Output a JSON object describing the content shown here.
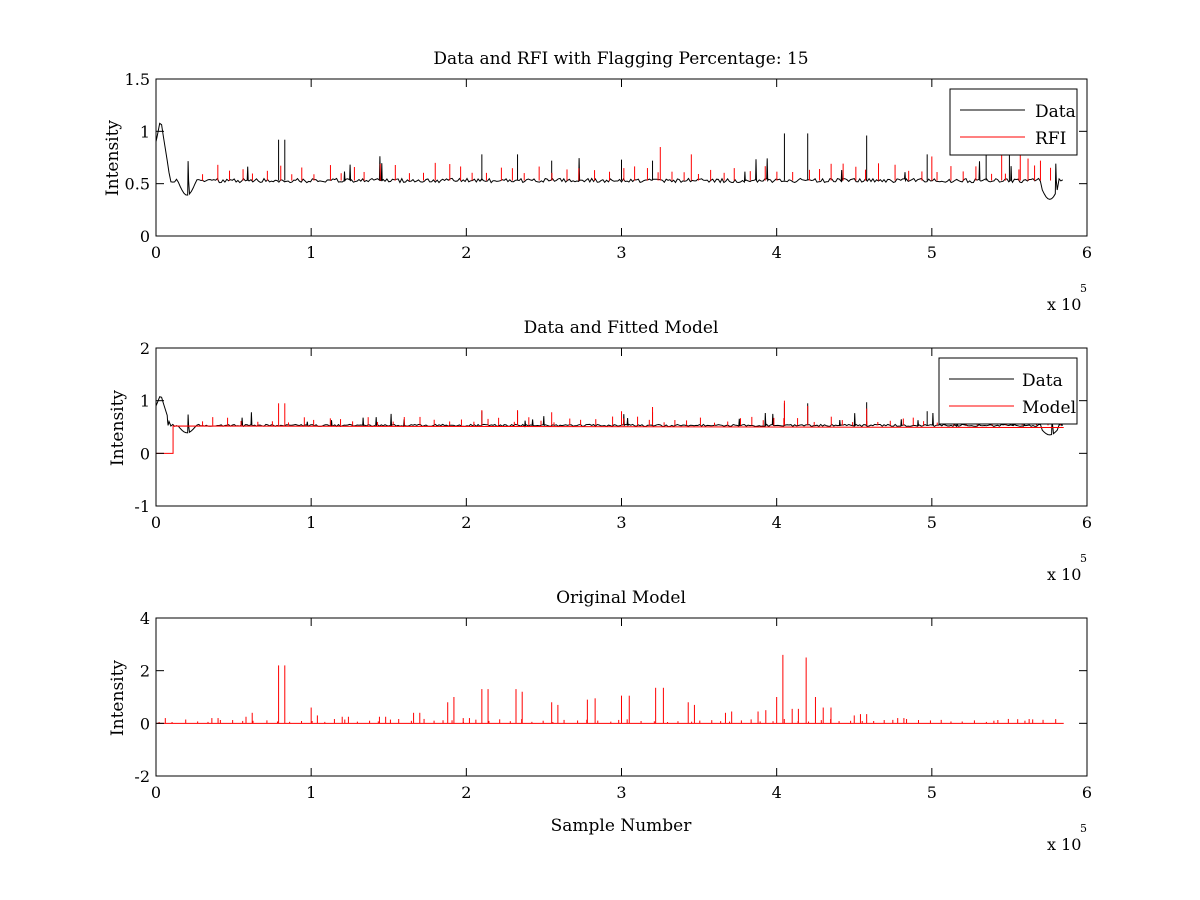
{
  "figure": {
    "background": "#ffffff"
  },
  "colors": {
    "data": "#000000",
    "rfi": "#ff0000",
    "axes": "#000000"
  },
  "chart_data": [
    {
      "type": "line",
      "title": "Data and RFI with Flagging Percentage: 15",
      "xlabel": "",
      "ylabel": "Intensity",
      "xlim": [
        0,
        600000
      ],
      "ylim": [
        0,
        1.5
      ],
      "xticks": [
        0,
        1,
        2,
        3,
        4,
        5,
        6
      ],
      "yticks": [
        0,
        0.5,
        1,
        1.5
      ],
      "ytick_labels": [
        "0",
        "0.5",
        "1",
        "1.5"
      ],
      "x_exponent": {
        "prefix": "x 10",
        "power": "5"
      },
      "legend": {
        "location": "top-right",
        "entries": [
          "Data",
          "RFI"
        ]
      },
      "series": [
        {
          "name": "Data",
          "color": "#000000",
          "baseline": 0.53,
          "description_points": [
            [
              0,
              0.9
            ],
            [
              2000,
              1.12
            ],
            [
              5000,
              0.85
            ],
            [
              10000,
              0.55
            ],
            [
              20000,
              0.4
            ],
            [
              25000,
              0.55
            ],
            [
              100000,
              0.55
            ],
            [
              300000,
              0.53
            ],
            [
              500000,
              0.5
            ],
            [
              570000,
              0.48
            ],
            [
              575000,
              0.35
            ],
            [
              585000,
              0.58
            ]
          ],
          "spikes": [
            [
              79000,
              0.92
            ],
            [
              83000,
              0.92
            ],
            [
              210000,
              0.78
            ],
            [
              233000,
              0.78
            ],
            [
              255000,
              0.72
            ],
            [
              300000,
              0.73
            ],
            [
              320000,
              0.72
            ],
            [
              405000,
              0.98
            ],
            [
              420000,
              0.98
            ],
            [
              458000,
              0.96
            ],
            [
              497000,
              0.78
            ],
            [
              535000,
              0.82
            ],
            [
              550000,
              0.82
            ]
          ]
        },
        {
          "name": "RFI",
          "color": "#ff0000",
          "spikes": [
            [
              325000,
              0.85
            ],
            [
              345000,
              0.78
            ],
            [
              500000,
              0.76
            ],
            [
              545000,
              0.85
            ],
            [
              557000,
              0.78
            ],
            [
              562000,
              0.74
            ],
            [
              570000,
              0.72
            ]
          ]
        }
      ]
    },
    {
      "type": "line",
      "title": "Data and Fitted Model",
      "xlabel": "",
      "ylabel": "Intensity",
      "xlim": [
        0,
        600000
      ],
      "ylim": [
        -1,
        2
      ],
      "xticks": [
        0,
        1,
        2,
        3,
        4,
        5,
        6
      ],
      "yticks": [
        -1,
        0,
        1,
        2
      ],
      "ytick_labels": [
        "-1",
        "0",
        "1",
        "2"
      ],
      "x_exponent": {
        "prefix": "x 10",
        "power": "5"
      },
      "legend": {
        "location": "top-right",
        "entries": [
          "Data",
          "Model"
        ]
      },
      "series": [
        {
          "name": "Data",
          "color": "#000000",
          "baseline": 0.53,
          "spikes": [
            [
              210000,
              0.8
            ],
            [
              233000,
              0.8
            ],
            [
              300000,
              0.78
            ],
            [
              320000,
              0.78
            ],
            [
              405000,
              0.95
            ],
            [
              420000,
              0.95
            ],
            [
              458000,
              0.97
            ],
            [
              497000,
              0.8
            ]
          ]
        },
        {
          "name": "Model",
          "color": "#ff0000",
          "baseline": 0.52,
          "spikes": [
            [
              79000,
              0.95
            ],
            [
              83000,
              0.95
            ],
            [
              210000,
              0.82
            ],
            [
              233000,
              0.82
            ],
            [
              255000,
              0.78
            ],
            [
              300000,
              0.8
            ],
            [
              320000,
              0.88
            ],
            [
              405000,
              1.0
            ],
            [
              420000,
              0.9
            ],
            [
              458000,
              0.85
            ]
          ]
        }
      ]
    },
    {
      "type": "line",
      "title": "Original Model",
      "xlabel": "Sample Number",
      "ylabel": "Intensity",
      "xlim": [
        0,
        600000
      ],
      "ylim": [
        -2,
        4
      ],
      "xticks": [
        0,
        1,
        2,
        3,
        4,
        5,
        6
      ],
      "yticks": [
        -2,
        0,
        2,
        4
      ],
      "ytick_labels": [
        "-2",
        "0",
        "2",
        "4"
      ],
      "x_exponent": {
        "prefix": "x 10",
        "power": "5"
      },
      "series": [
        {
          "name": "Original Model",
          "color": "#ff0000",
          "baseline": 0,
          "spikes": [
            [
              6000,
              0.2
            ],
            [
              36000,
              0.2
            ],
            [
              40000,
              0.2
            ],
            [
              58000,
              0.25
            ],
            [
              62000,
              0.4
            ],
            [
              79000,
              2.2
            ],
            [
              83000,
              2.2
            ],
            [
              100000,
              0.6
            ],
            [
              104000,
              0.3
            ],
            [
              120000,
              0.25
            ],
            [
              124000,
              0.25
            ],
            [
              144000,
              0.25
            ],
            [
              148000,
              0.25
            ],
            [
              166000,
              0.4
            ],
            [
              170000,
              0.4
            ],
            [
              188000,
              0.8
            ],
            [
              192000,
              1.0
            ],
            [
              198000,
              0.2
            ],
            [
              202000,
              0.2
            ],
            [
              210000,
              1.3
            ],
            [
              214000,
              1.3
            ],
            [
              232000,
              1.3
            ],
            [
              236000,
              1.2
            ],
            [
              255000,
              0.8
            ],
            [
              259000,
              0.7
            ],
            [
              278000,
              0.9
            ],
            [
              283000,
              0.95
            ],
            [
              300000,
              1.05
            ],
            [
              305000,
              1.05
            ],
            [
              322000,
              1.35
            ],
            [
              327000,
              1.35
            ],
            [
              343000,
              0.8
            ],
            [
              347000,
              0.7
            ],
            [
              367000,
              0.4
            ],
            [
              371000,
              0.45
            ],
            [
              388000,
              0.45
            ],
            [
              393000,
              0.5
            ],
            [
              400000,
              1.0
            ],
            [
              404000,
              2.6
            ],
            [
              410000,
              0.55
            ],
            [
              414000,
              0.55
            ],
            [
              419000,
              2.5
            ],
            [
              425000,
              1.0
            ],
            [
              430000,
              0.6
            ],
            [
              435000,
              0.6
            ],
            [
              450000,
              0.3
            ],
            [
              454000,
              0.35
            ],
            [
              458000,
              0.35
            ],
            [
              478000,
              0.2
            ],
            [
              482000,
              0.2
            ],
            [
              540000,
              0.1
            ],
            [
              560000,
              0.1
            ],
            [
              565000,
              0.15
            ]
          ]
        }
      ]
    }
  ]
}
